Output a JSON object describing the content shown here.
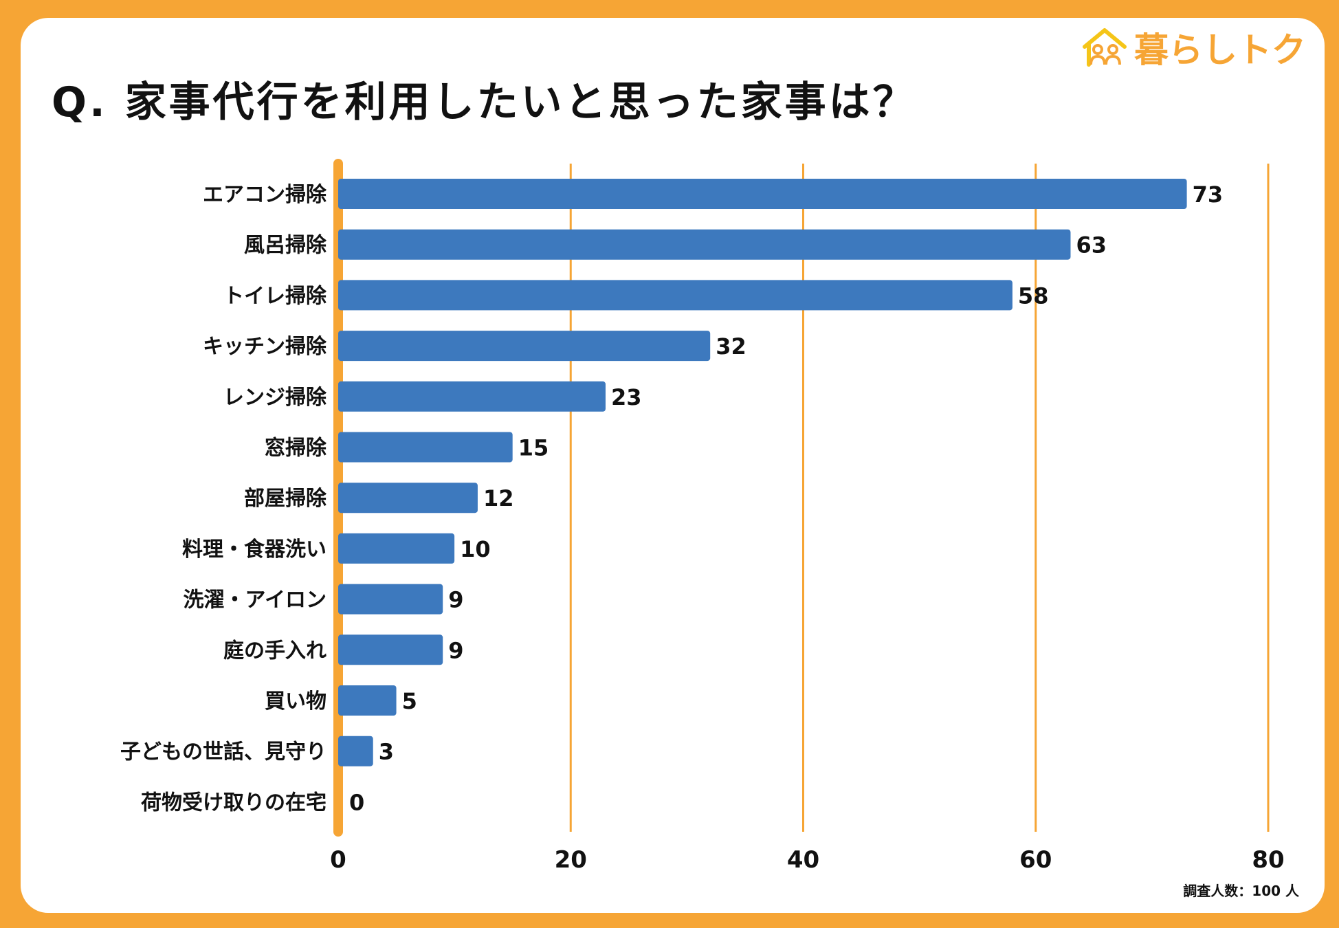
{
  "title": "Q. 家事代行を利用したいと思った家事は？",
  "logo": {
    "text": "暮らしトク",
    "icon": "house-people-icon"
  },
  "footnote": "調査人数：100 人",
  "colors": {
    "background": "#F6A535",
    "bar": "#3D79BE",
    "grid": "#F6A535",
    "axis": "#F6A535"
  },
  "chart_data": {
    "type": "bar",
    "orientation": "horizontal",
    "title": "Q. 家事代行を利用したいと思った家事は？",
    "categories": [
      "エアコン掃除",
      "風呂掃除",
      "トイレ掃除",
      "キッチン掃除",
      "レンジ掃除",
      "窓掃除",
      "部屋掃除",
      "料理・食器洗い",
      "洗濯・アイロン",
      "庭の手入れ",
      "買い物",
      "子どもの世話、見守り",
      "荷物受け取りの在宅"
    ],
    "values": [
      73,
      63,
      58,
      32,
      23,
      15,
      12,
      10,
      9,
      9,
      5,
      3,
      0
    ],
    "xlim": [
      0,
      80
    ],
    "xticks": [
      0,
      20,
      40,
      60,
      80
    ],
    "grid": true,
    "xlabel": "",
    "ylabel": ""
  }
}
